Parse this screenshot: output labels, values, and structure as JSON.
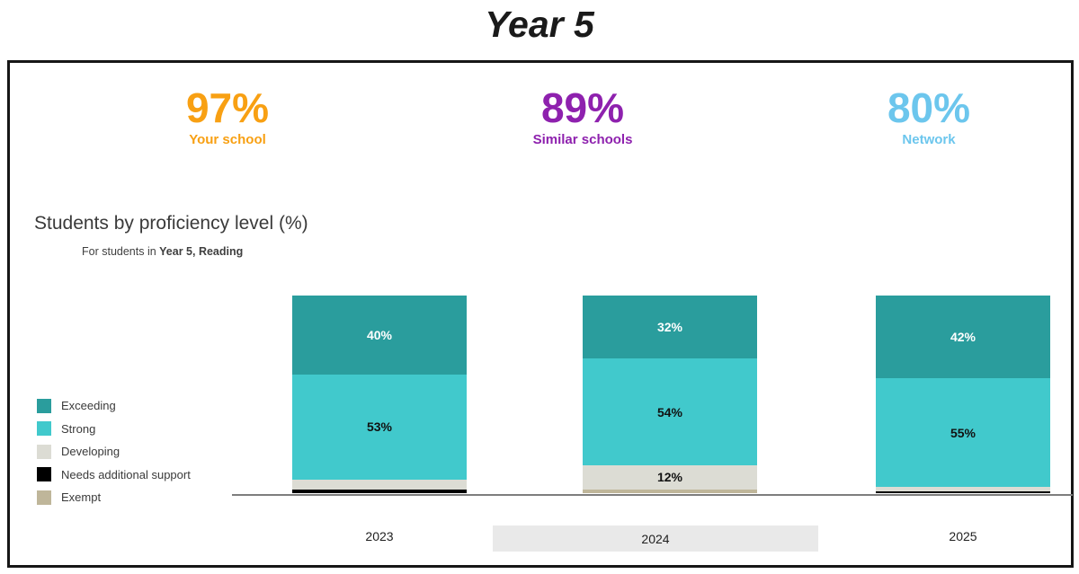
{
  "page_title": "Year 5",
  "stats": [
    {
      "value": "97%",
      "label": "Your school",
      "color": "#F8A013"
    },
    {
      "value": "89%",
      "label": "Similar schools",
      "color": "#8E21AE"
    },
    {
      "value": "80%",
      "label": "Network",
      "color": "#6CC6ED"
    }
  ],
  "section": {
    "title": "Students by proficiency level (%)",
    "subtitle_prefix": "For students in ",
    "subtitle_bold": "Year 5, Reading"
  },
  "chart_data": {
    "type": "bar",
    "stacked": true,
    "title": "Students by proficiency level (%)",
    "subtitle": "For students in Year 5, Reading",
    "categories": [
      "2023",
      "2024",
      "2025"
    ],
    "series": [
      {
        "name": "Exceeding",
        "color": "#2A9D9D",
        "label_color": "#ffffff",
        "values": [
          40,
          32,
          42
        ]
      },
      {
        "name": "Strong",
        "color": "#41C9CC",
        "label_color": "#111111",
        "values": [
          53,
          54,
          55
        ]
      },
      {
        "name": "Developing",
        "color": "#DCDCD4",
        "label_color": "#111111",
        "values": [
          5,
          12,
          2
        ]
      },
      {
        "name": "Needs additional support",
        "color": "#000000",
        "label_color": "#ffffff",
        "values": [
          2,
          0,
          1
        ]
      },
      {
        "name": "Exempt",
        "color": "#BFB69A",
        "label_color": "#111111",
        "values": [
          0,
          2,
          0
        ]
      }
    ],
    "data_label_format": "{v}%",
    "data_label_min_value": 10,
    "highlighted_category": "2024",
    "ylim": [
      0,
      100
    ],
    "legend_position": "left",
    "grid": false
  },
  "legend_title": ""
}
